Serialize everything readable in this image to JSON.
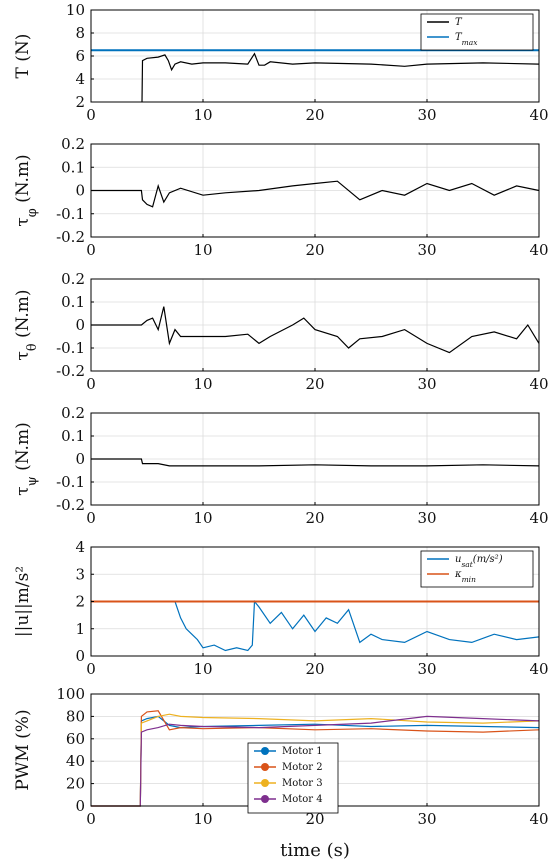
{
  "figure": {
    "xlabel": "time (s)"
  },
  "chart_data": [
    {
      "type": "line",
      "ylabel": "T (N)",
      "xlim": [
        0,
        40
      ],
      "ylim": [
        2,
        10
      ],
      "xticks": [
        "0",
        "10",
        "20",
        "30",
        "40"
      ],
      "yticks": [
        "2",
        "4",
        "6",
        "8",
        "10"
      ],
      "grid": true,
      "legend": "top-right",
      "series": [
        {
          "name": "T",
          "color": "#000000",
          "x": [
            4.55,
            4.6,
            5,
            6,
            6.6,
            6.9,
            7.2,
            7.5,
            8,
            9,
            10,
            12,
            14,
            14.6,
            15,
            15.5,
            16,
            18,
            20,
            25,
            28,
            30,
            35,
            40
          ],
          "y": [
            2,
            5.6,
            5.8,
            5.9,
            6.1,
            5.6,
            4.8,
            5.3,
            5.5,
            5.3,
            5.4,
            5.4,
            5.3,
            6.2,
            5.2,
            5.2,
            5.5,
            5.3,
            5.4,
            5.3,
            5.1,
            5.3,
            5.4,
            5.3
          ]
        },
        {
          "name": "T_max",
          "color": "#0072BD",
          "x": [
            0,
            40
          ],
          "y": [
            6.5,
            6.5
          ]
        }
      ]
    },
    {
      "type": "line",
      "ylabel": "τ_φ (N.m)",
      "xlim": [
        0,
        40
      ],
      "ylim": [
        -0.2,
        0.2
      ],
      "xticks": [
        "0",
        "10",
        "20",
        "30",
        "40"
      ],
      "yticks": [
        "-0.2",
        "-0.1",
        "0",
        "0.1",
        "0.2"
      ],
      "grid": true,
      "series": [
        {
          "name": "",
          "color": "#000000",
          "x": [
            0,
            4.5,
            4.6,
            5,
            5.5,
            6,
            6.5,
            7,
            8,
            10,
            12,
            15,
            18,
            20,
            22,
            24,
            26,
            28,
            30,
            32,
            34,
            36,
            38,
            40
          ],
          "y": [
            0,
            0,
            -0.04,
            -0.06,
            -0.07,
            0.02,
            -0.05,
            -0.01,
            0.01,
            -0.02,
            -0.01,
            0.0,
            0.02,
            0.03,
            0.04,
            -0.04,
            0.0,
            -0.02,
            0.03,
            0.0,
            0.03,
            -0.02,
            0.02,
            0.0
          ]
        }
      ]
    },
    {
      "type": "line",
      "ylabel": "τ_θ (N.m)",
      "xlim": [
        0,
        40
      ],
      "ylim": [
        -0.2,
        0.2
      ],
      "xticks": [
        "0",
        "10",
        "20",
        "30",
        "40"
      ],
      "yticks": [
        "-0.2",
        "-0.1",
        "0",
        "0.1",
        "0.2"
      ],
      "grid": true,
      "series": [
        {
          "name": "",
          "color": "#000000",
          "x": [
            0,
            4.5,
            5,
            5.5,
            6,
            6.5,
            7,
            7.5,
            8,
            10,
            12,
            14,
            15,
            16,
            18,
            19,
            20,
            22,
            23,
            24,
            26,
            28,
            30,
            32,
            34,
            36,
            38,
            39,
            40
          ],
          "y": [
            0,
            0,
            0.02,
            0.03,
            -0.02,
            0.08,
            -0.08,
            -0.02,
            -0.05,
            -0.05,
            -0.05,
            -0.04,
            -0.08,
            -0.05,
            0.0,
            0.03,
            -0.02,
            -0.05,
            -0.1,
            -0.06,
            -0.05,
            -0.02,
            -0.08,
            -0.12,
            -0.05,
            -0.03,
            -0.06,
            0.0,
            -0.08
          ]
        }
      ]
    },
    {
      "type": "line",
      "ylabel": "τ_ψ (N.m)",
      "xlim": [
        0,
        40
      ],
      "ylim": [
        -0.2,
        0.2
      ],
      "xticks": [
        "0",
        "10",
        "20",
        "30",
        "40"
      ],
      "yticks": [
        "-0.2",
        "-0.1",
        "0",
        "0.1",
        "0.2"
      ],
      "grid": true,
      "series": [
        {
          "name": "",
          "color": "#000000",
          "x": [
            0,
            4.5,
            4.6,
            6,
            7,
            8,
            10,
            15,
            20,
            25,
            30,
            35,
            40
          ],
          "y": [
            0,
            0,
            -0.02,
            -0.02,
            -0.03,
            -0.03,
            -0.03,
            -0.03,
            -0.025,
            -0.03,
            -0.03,
            -0.025,
            -0.03
          ]
        }
      ]
    },
    {
      "type": "line",
      "ylabel": "||u||m/s²",
      "xlim": [
        0,
        40
      ],
      "ylim": [
        0,
        4
      ],
      "xticks": [
        "0",
        "10",
        "20",
        "30",
        "40"
      ],
      "yticks": [
        "0",
        "1",
        "2",
        "3",
        "4"
      ],
      "grid": true,
      "legend": "top-right",
      "series": [
        {
          "name": "u_sat(m/s²)",
          "color": "#0072BD",
          "x": [
            6.8,
            7.5,
            8,
            8.5,
            9,
            9.5,
            10,
            11,
            12,
            13,
            14,
            14.4,
            14.6,
            15,
            16,
            17,
            18,
            19,
            20,
            21,
            22,
            23,
            24,
            25,
            26,
            28,
            30,
            32,
            34,
            36,
            38,
            40
          ],
          "y": [
            2,
            2,
            1.4,
            1.0,
            0.8,
            0.6,
            0.3,
            0.4,
            0.2,
            0.3,
            0.2,
            0.4,
            2.0,
            1.8,
            1.2,
            1.6,
            1.0,
            1.5,
            0.9,
            1.4,
            1.2,
            1.7,
            0.5,
            0.8,
            0.6,
            0.5,
            0.9,
            0.6,
            0.5,
            0.8,
            0.6,
            0.7
          ]
        },
        {
          "name": "κ_min",
          "color": "#D95319",
          "x": [
            0,
            40
          ],
          "y": [
            2,
            2
          ]
        }
      ]
    },
    {
      "type": "line",
      "ylabel": "PWM (%)",
      "xlim": [
        0,
        40
      ],
      "ylim": [
        0,
        100
      ],
      "xticks": [
        "0",
        "10",
        "20",
        "30",
        "40"
      ],
      "yticks": [
        "0",
        "20",
        "40",
        "60",
        "80",
        "100"
      ],
      "grid": true,
      "legend": "bottom-center",
      "series": [
        {
          "name": "Motor 1",
          "color": "#0072BD",
          "x": [
            0,
            4.4,
            4.5,
            5,
            6,
            7,
            8,
            10,
            15,
            20,
            25,
            30,
            35,
            40
          ],
          "y": [
            0,
            0,
            76,
            78,
            80,
            72,
            70,
            71,
            72,
            73,
            71,
            72,
            71,
            70
          ]
        },
        {
          "name": "Motor 2",
          "color": "#D95319",
          "x": [
            0,
            4.4,
            4.5,
            5,
            6,
            7,
            8,
            10,
            15,
            20,
            25,
            30,
            35,
            40
          ],
          "y": [
            0,
            0,
            80,
            84,
            85,
            68,
            70,
            69,
            70,
            68,
            69,
            67,
            66,
            68
          ]
        },
        {
          "name": "Motor 3",
          "color": "#EDB120",
          "x": [
            0,
            4.4,
            4.5,
            5,
            6,
            7,
            8,
            10,
            15,
            20,
            25,
            30,
            35,
            40
          ],
          "y": [
            0,
            0,
            74,
            76,
            80,
            82,
            80,
            79,
            78,
            76,
            78,
            75,
            74,
            76
          ]
        },
        {
          "name": "Motor 4",
          "color": "#7E2F8E",
          "x": [
            0,
            4.4,
            4.5,
            5,
            6,
            7,
            8,
            10,
            15,
            20,
            25,
            30,
            35,
            40
          ],
          "y": [
            0,
            0,
            66,
            68,
            70,
            73,
            72,
            71,
            70,
            72,
            74,
            80,
            78,
            76
          ]
        }
      ]
    }
  ]
}
